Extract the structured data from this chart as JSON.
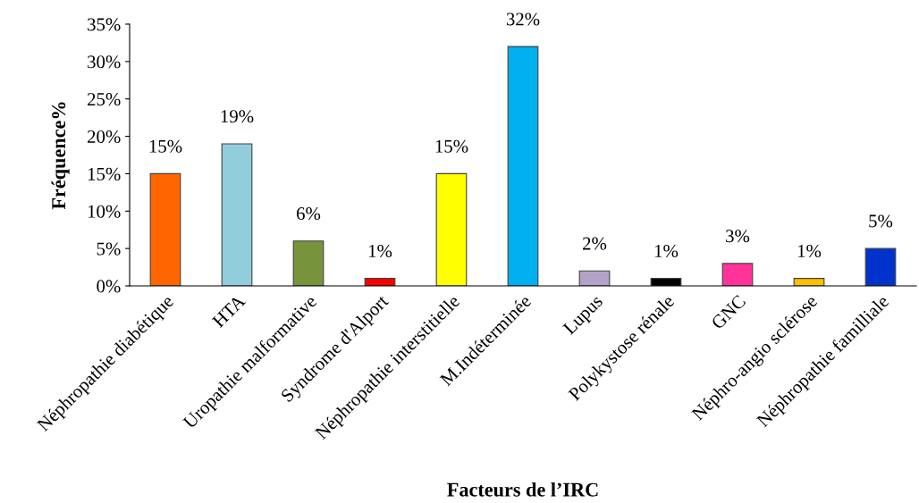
{
  "chart_data": {
    "type": "bar",
    "xlabel": "Facteurs de l’IRC",
    "ylabel": "Fréquence%",
    "categories": [
      "Néphropathie diabétique",
      "HTA",
      "Uropathie malformative",
      "Syndrome d'Alport",
      "Néphropathie interstitielle",
      "M.Indéterminée",
      "Lupus",
      "Polykystose rénale",
      "GNC",
      "Néphro-angio sclérose",
      "Néphropathie familliale"
    ],
    "values": [
      15,
      19,
      6,
      1,
      15,
      32,
      2,
      1,
      3,
      1,
      5
    ],
    "value_labels": [
      "15%",
      "19%",
      "6%",
      "1%",
      "15%",
      "32%",
      "2%",
      "1%",
      "3%",
      "1%",
      "5%"
    ],
    "colors": [
      "#ff6600",
      "#92cddc",
      "#77933c",
      "#ff0000",
      "#ffff00",
      "#00b0f0",
      "#b3a2c7",
      "#000000",
      "#ff3399",
      "#ffc000",
      "#0033cc"
    ],
    "ylim": [
      0,
      35
    ],
    "yticks": [
      {
        "value": 0,
        "label": "0%"
      },
      {
        "value": 5,
        "label": "5%"
      },
      {
        "value": 10,
        "label": "10%"
      },
      {
        "value": 15,
        "label": "15%"
      },
      {
        "value": 20,
        "label": "20%"
      },
      {
        "value": 25,
        "label": "25%"
      },
      {
        "value": 30,
        "label": "30%"
      },
      {
        "value": 35,
        "label": "35%"
      }
    ],
    "grid": false,
    "legend": false
  }
}
